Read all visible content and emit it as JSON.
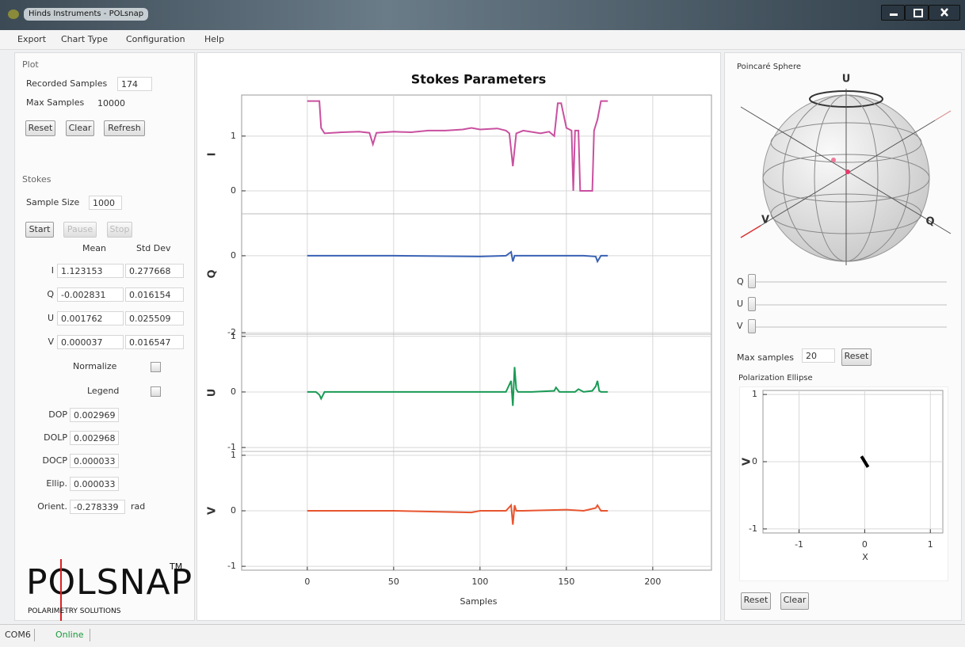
{
  "window": {
    "title": "Hinds Instruments - POLsnap"
  },
  "menu": [
    "Export",
    "Chart Type",
    "Configuration",
    "Help"
  ],
  "plot_panel": {
    "title": "Plot",
    "recorded_samples_label": "Recorded Samples",
    "recorded_samples": "174",
    "max_samples_label": "Max Samples",
    "max_samples": "10000",
    "buttons": [
      "Reset",
      "Clear",
      "Refresh"
    ]
  },
  "stokes_panel": {
    "title": "Stokes",
    "sample_size_label": "Sample Size",
    "sample_size": "1000",
    "buttons": [
      "Start",
      "Pause",
      "Stop"
    ],
    "columns": [
      "Mean",
      "Std Dev"
    ],
    "rows": [
      [
        "I",
        "1.123153",
        "0.277668"
      ],
      [
        "Q",
        "-0.002831",
        "0.016154"
      ],
      [
        "U",
        "0.001762",
        "0.025509"
      ],
      [
        "V",
        "0.000037",
        "0.016547"
      ]
    ],
    "options": [
      "Normalize",
      "Legend"
    ],
    "metrics": [
      [
        "DOP",
        "0.002969"
      ],
      [
        "DOLP",
        "0.002968"
      ],
      [
        "DOCP",
        "0.000033"
      ],
      [
        "Ellip.",
        "0.000033"
      ],
      [
        "Orient.",
        "-0.278339",
        "rad"
      ]
    ]
  },
  "logo": {
    "name": "POLSNAP",
    "tm": "TM",
    "tagline": "POLARIMETRY SOLUTIONS"
  },
  "poincare": {
    "title": "Poincaré Sphere",
    "axes": [
      "U",
      "V",
      "Q"
    ]
  },
  "sliders": [
    "Q",
    "U",
    "V"
  ],
  "max_samples": {
    "label": "Max samples",
    "value": "20",
    "button": "Reset"
  },
  "ellipse_buttons": [
    "Reset",
    "Clear"
  ],
  "status": [
    "COM6",
    "Online"
  ],
  "chart_data": [
    {
      "type": "line",
      "title": "Stokes Parameters",
      "x_label": "Samples",
      "xlim": [
        -38,
        234
      ],
      "xticks": [
        0,
        50,
        100,
        150,
        200
      ],
      "grid": true,
      "series": [
        {
          "name": "I",
          "color": "#c9509f",
          "ylim": [
            -0.42,
            1.75
          ],
          "yticks": [
            0,
            1
          ],
          "x": [
            0,
            7,
            8,
            10,
            20,
            30,
            36,
            38,
            40,
            50,
            60,
            70,
            80,
            90,
            95,
            100,
            110,
            115,
            117,
            119,
            121,
            125,
            135,
            140,
            143,
            145,
            147,
            150,
            153,
            154,
            155,
            157,
            158,
            160,
            162,
            165,
            166,
            167,
            168,
            170,
            174
          ],
          "values": [
            1.64,
            1.64,
            1.15,
            1.05,
            1.07,
            1.08,
            1.06,
            0.85,
            1.06,
            1.08,
            1.07,
            1.1,
            1.1,
            1.12,
            1.15,
            1.12,
            1.14,
            1.1,
            1.05,
            0.45,
            1.05,
            1.1,
            1.05,
            1.08,
            1.0,
            1.6,
            1.6,
            1.15,
            1.1,
            0.0,
            1.1,
            1.1,
            0.0,
            0.0,
            0.0,
            0.0,
            1.1,
            1.2,
            1.3,
            1.64,
            1.64
          ]
        },
        {
          "name": "Q",
          "color": "#3a62b4",
          "ylim": [
            -2.04,
            1.09
          ],
          "yticks": [
            -2,
            0
          ],
          "x": [
            0,
            50,
            100,
            115,
            118,
            119,
            120,
            125,
            160,
            167,
            168,
            170,
            174
          ],
          "values": [
            0,
            0,
            -0.02,
            0,
            0.1,
            -0.15,
            0,
            0,
            0,
            -0.02,
            -0.15,
            0,
            0
          ]
        },
        {
          "name": "U",
          "color": "#1a9a55",
          "ylim": [
            -1.07,
            1.04
          ],
          "yticks": [
            -1,
            0,
            1
          ],
          "x": [
            0,
            5,
            7,
            8,
            10,
            50,
            100,
            115,
            118,
            119,
            120,
            121,
            122,
            130,
            143,
            144,
            146,
            150,
            155,
            157,
            160,
            165,
            167,
            168,
            169,
            170,
            174
          ],
          "values": [
            0,
            0,
            -0.05,
            -0.12,
            0,
            0,
            0,
            0,
            0.2,
            -0.25,
            0.45,
            0.05,
            0,
            0,
            0.02,
            0.08,
            0,
            0,
            0,
            0.05,
            0,
            0.02,
            0.1,
            0.2,
            0.02,
            0,
            0
          ]
        },
        {
          "name": "V",
          "color": "#e8552f",
          "ylim": [
            -1.07,
            1.07
          ],
          "yticks": [
            -1,
            0,
            1
          ],
          "x": [
            0,
            50,
            95,
            100,
            110,
            115,
            118,
            119,
            120,
            121,
            125,
            150,
            160,
            167,
            168,
            170,
            174
          ],
          "values": [
            0,
            0,
            -0.03,
            0,
            0,
            0,
            0.1,
            -0.25,
            0.1,
            0,
            0,
            0.02,
            0,
            0.05,
            0.1,
            0,
            0
          ]
        }
      ]
    },
    {
      "type": "line",
      "title": "Polarization Ellipse",
      "x_label": "X",
      "y_label": "V",
      "xlim": [
        -1.55,
        1.19
      ],
      "ylim": [
        -1.06,
        1.06
      ],
      "xticks": [
        -1,
        0,
        1
      ],
      "yticks": [
        -1,
        0,
        1
      ],
      "grid": true,
      "series": [
        {
          "color": "#000000",
          "x": [
            -0.05,
            0.05
          ],
          "values": [
            0.08,
            -0.08
          ]
        }
      ]
    }
  ]
}
